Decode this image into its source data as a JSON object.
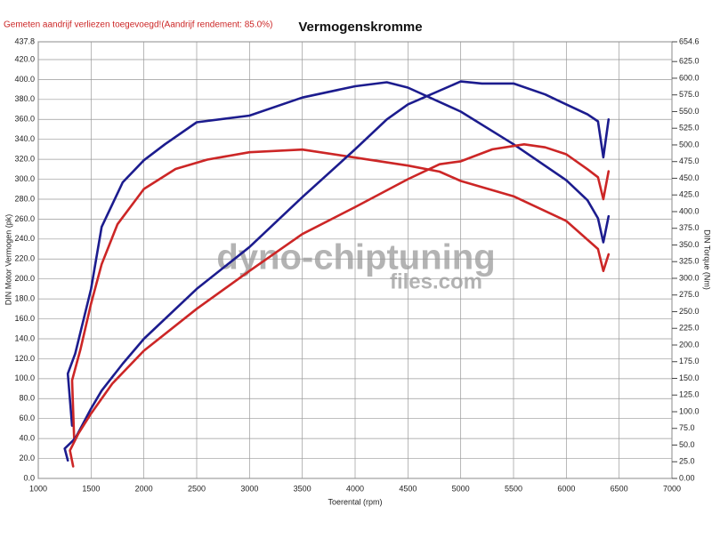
{
  "chart_data": {
    "type": "line",
    "subtitle": "Gemeten aandrijf verliezen toegevoegd!(Aandrijf rendement: 85.0%)",
    "title": "Vermogenskromme",
    "x_label": "Toerental (rpm)",
    "y_label": "DIN Motor Vermogen (pk)",
    "y2_label": "DIN Torque (Nm)",
    "annotations": [
      "dyno-chiptuning",
      "files.com"
    ],
    "grid": true,
    "xlim": [
      1000,
      7000
    ],
    "xticks": [
      1000,
      1500,
      2000,
      2500,
      3000,
      3500,
      4000,
      4500,
      5000,
      5500,
      6000,
      6500,
      7000
    ],
    "ylim": [
      0,
      437.8
    ],
    "yticks": [
      {
        "value": 0,
        "label": "0.0"
      },
      {
        "value": 20,
        "label": "20.0"
      },
      {
        "value": 40,
        "label": "40.0"
      },
      {
        "value": 60,
        "label": "60.0"
      },
      {
        "value": 80,
        "label": "80.0"
      },
      {
        "value": 100,
        "label": "100.0"
      },
      {
        "value": 120,
        "label": "120.0"
      },
      {
        "value": 140,
        "label": "140.0"
      },
      {
        "value": 160,
        "label": "160.0"
      },
      {
        "value": 180,
        "label": "180.0"
      },
      {
        "value": 200,
        "label": "200.0"
      },
      {
        "value": 220,
        "label": "220.0"
      },
      {
        "value": 240,
        "label": "240.0"
      },
      {
        "value": 260,
        "label": "260.0"
      },
      {
        "value": 280,
        "label": "280.0"
      },
      {
        "value": 300,
        "label": "300.0"
      },
      {
        "value": 320,
        "label": "320.0"
      },
      {
        "value": 340,
        "label": "340.0"
      },
      {
        "value": 360,
        "label": "360.0"
      },
      {
        "value": 380,
        "label": "380.0"
      },
      {
        "value": 400,
        "label": "400.0"
      },
      {
        "value": 420,
        "label": "420.0"
      },
      {
        "value": 437.8,
        "label": "437.8"
      }
    ],
    "y2lim": [
      0,
      654.6
    ],
    "y2ticks": [
      {
        "value": 0,
        "label": "0.00"
      },
      {
        "value": 25,
        "label": "25.0"
      },
      {
        "value": 50,
        "label": "50.0"
      },
      {
        "value": 75,
        "label": "75.0"
      },
      {
        "value": 100,
        "label": "100.0"
      },
      {
        "value": 125,
        "label": "125.0"
      },
      {
        "value": 150,
        "label": "150.0"
      },
      {
        "value": 175,
        "label": "175.0"
      },
      {
        "value": 200,
        "label": "200.0"
      },
      {
        "value": 225,
        "label": "225.0"
      },
      {
        "value": 250,
        "label": "250.0"
      },
      {
        "value": 275,
        "label": "275.0"
      },
      {
        "value": 300,
        "label": "300.0"
      },
      {
        "value": 325,
        "label": "325.0"
      },
      {
        "value": 350,
        "label": "350.0"
      },
      {
        "value": 375,
        "label": "375.0"
      },
      {
        "value": 400,
        "label": "400.0"
      },
      {
        "value": 425,
        "label": "425.0"
      },
      {
        "value": 450,
        "label": "450.0"
      },
      {
        "value": 475,
        "label": "475.0"
      },
      {
        "value": 500,
        "label": "500.0"
      },
      {
        "value": 525,
        "label": "525.0"
      },
      {
        "value": 550,
        "label": "550.0"
      },
      {
        "value": 575,
        "label": "575.0"
      },
      {
        "value": 600,
        "label": "600.0"
      },
      {
        "value": 625,
        "label": "625.0"
      },
      {
        "value": 654.6,
        "label": "654.6"
      }
    ],
    "series": [
      {
        "color": "#1c1c8e",
        "axis": "y2",
        "x": [
          1320,
          1280,
          1350,
          1500,
          1600,
          1800,
          2000,
          2200,
          2500,
          3000,
          3500,
          4000,
          4300,
          4500,
          5000,
          5500,
          6000,
          6200,
          6300,
          6350,
          6400
        ],
        "values": [
          79,
          157,
          187,
          284,
          377,
          444,
          477,
          501,
          534,
          544,
          571,
          588,
          594,
          586,
          550,
          501,
          447,
          417,
          390,
          354,
          393
        ]
      },
      {
        "color": "#cc2626",
        "axis": "y2",
        "x": [
          1340,
          1320,
          1400,
          1500,
          1600,
          1750,
          2000,
          2300,
          2600,
          3000,
          3500,
          4000,
          4500,
          4800,
          5000,
          5500,
          6000,
          6300,
          6350,
          6400
        ],
        "values": [
          60,
          147,
          194,
          262,
          321,
          381,
          434,
          464,
          478,
          489,
          493,
          481,
          469,
          460,
          446,
          423,
          386,
          344,
          311,
          336
        ]
      },
      {
        "color": "#1c1c8e",
        "x": [
          1280,
          1250,
          1350,
          1500,
          1600,
          1800,
          2000,
          2500,
          3000,
          3500,
          4000,
          4300,
          4500,
          5000,
          5200,
          5500,
          5800,
          6000,
          6200,
          6300,
          6350,
          6400
        ],
        "values": [
          18,
          30,
          40,
          70,
          88,
          115,
          140,
          190,
          232,
          282,
          330,
          360,
          375,
          398,
          396,
          396,
          385,
          375,
          365,
          358,
          322,
          360
        ]
      },
      {
        "color": "#cc2626",
        "x": [
          1330,
          1300,
          1380,
          1500,
          1700,
          2000,
          2500,
          3000,
          3500,
          4000,
          4500,
          4800,
          5000,
          5300,
          5600,
          5800,
          6000,
          6200,
          6300,
          6350,
          6400
        ],
        "values": [
          12,
          28,
          45,
          65,
          95,
          128,
          170,
          208,
          245,
          272,
          300,
          315,
          318,
          330,
          335,
          332,
          325,
          310,
          302,
          280,
          308
        ]
      }
    ]
  }
}
